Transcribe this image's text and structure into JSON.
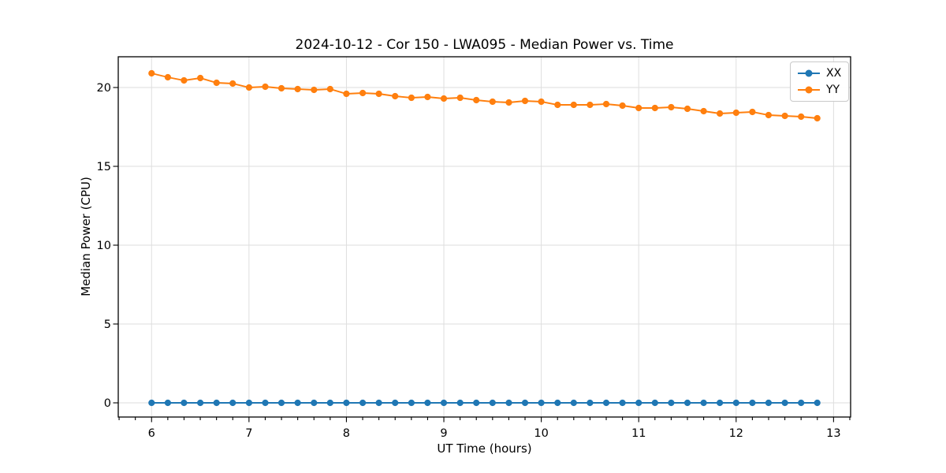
{
  "chart_data": {
    "type": "line",
    "title": "2024-10-12 - Cor 150 - LWA095 - Median Power vs. Time",
    "xlabel": "UT Time (hours)",
    "ylabel": "Median Power (CPU)",
    "x_ticks": [
      6,
      7,
      8,
      9,
      10,
      11,
      12,
      13
    ],
    "y_ticks": [
      0,
      5,
      10,
      15,
      20
    ],
    "xlim": [
      5.658,
      13.175
    ],
    "ylim": [
      -0.9,
      21.95
    ],
    "x_minor_tick_interval": 0.1667,
    "grid": true,
    "grid_color": "#dedede",
    "background": "#ffffff",
    "legend_position": "upper right",
    "marker": "o",
    "x": [
      6.0,
      6.167,
      6.333,
      6.5,
      6.667,
      6.833,
      7.0,
      7.167,
      7.333,
      7.5,
      7.667,
      7.833,
      8.0,
      8.167,
      8.333,
      8.5,
      8.667,
      8.833,
      9.0,
      9.167,
      9.333,
      9.5,
      9.667,
      9.833,
      10.0,
      10.167,
      10.333,
      10.5,
      10.667,
      10.833,
      11.0,
      11.167,
      11.333,
      11.5,
      11.667,
      11.833,
      12.0,
      12.167,
      12.333,
      12.5,
      12.667,
      12.833
    ],
    "series": [
      {
        "name": "XX",
        "color": "#1f77b4",
        "values": [
          0.0,
          0.0,
          0.0,
          0.0,
          0.0,
          0.0,
          0.0,
          0.0,
          0.0,
          0.0,
          0.0,
          0.0,
          0.0,
          0.0,
          0.0,
          0.0,
          0.0,
          0.0,
          0.0,
          0.0,
          0.0,
          0.0,
          0.0,
          0.0,
          0.0,
          0.0,
          0.0,
          0.0,
          0.0,
          0.0,
          0.0,
          0.0,
          0.0,
          0.0,
          0.0,
          0.0,
          0.0,
          0.0,
          0.0,
          0.0,
          0.0,
          0.0
        ]
      },
      {
        "name": "YY",
        "color": "#ff7f0e",
        "values": [
          20.9,
          20.65,
          20.45,
          20.6,
          20.3,
          20.25,
          20.0,
          20.05,
          19.95,
          19.9,
          19.85,
          19.9,
          19.6,
          19.65,
          19.6,
          19.45,
          19.35,
          19.4,
          19.3,
          19.35,
          19.2,
          19.1,
          19.05,
          19.15,
          19.1,
          18.9,
          18.9,
          18.9,
          18.95,
          18.85,
          18.7,
          18.7,
          18.75,
          18.65,
          18.5,
          18.35,
          18.4,
          18.45,
          18.25,
          18.2,
          18.15,
          18.05
        ]
      }
    ]
  }
}
